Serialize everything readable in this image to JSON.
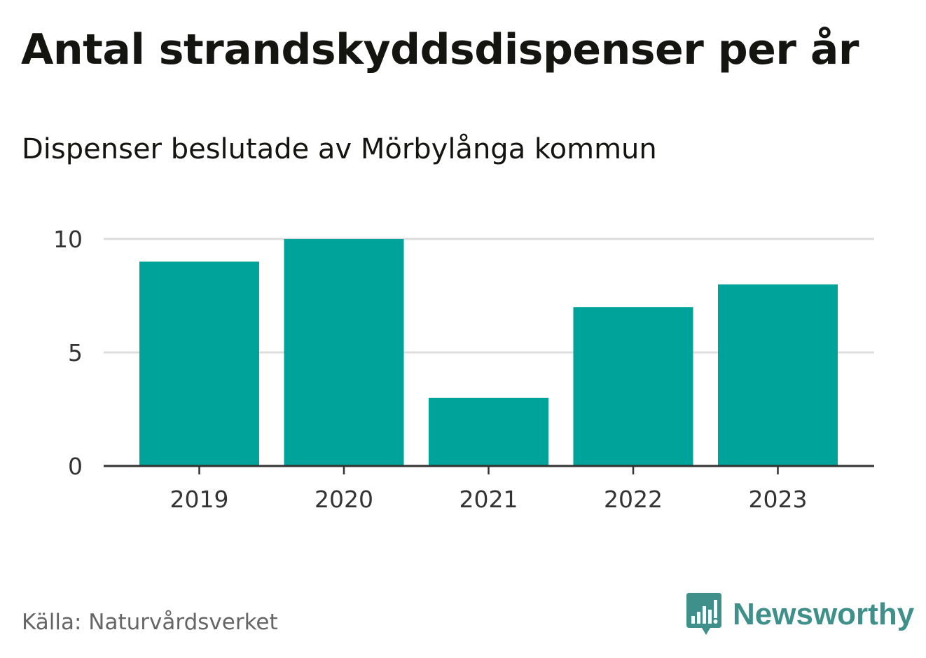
{
  "title": "Antal strandskyddsdispenser per år",
  "subtitle": "Dispenser beslutade av Mörbylånga kommun",
  "source": "Källa: Naturvårdsverket",
  "brand": {
    "name": "Newsworthy",
    "icon": "newsworthy-logo-icon",
    "color": "#3f8f8b"
  },
  "colors": {
    "bar": "#00a39a",
    "grid": "#dddddd",
    "axis": "#333333"
  },
  "chart_data": {
    "type": "bar",
    "categories": [
      "2019",
      "2020",
      "2021",
      "2022",
      "2023"
    ],
    "values": [
      9,
      10,
      3,
      7,
      8
    ],
    "ylim": [
      0,
      10
    ],
    "yticks": [
      0,
      5,
      10
    ],
    "xlabel": "",
    "ylabel": "",
    "grid": true
  }
}
